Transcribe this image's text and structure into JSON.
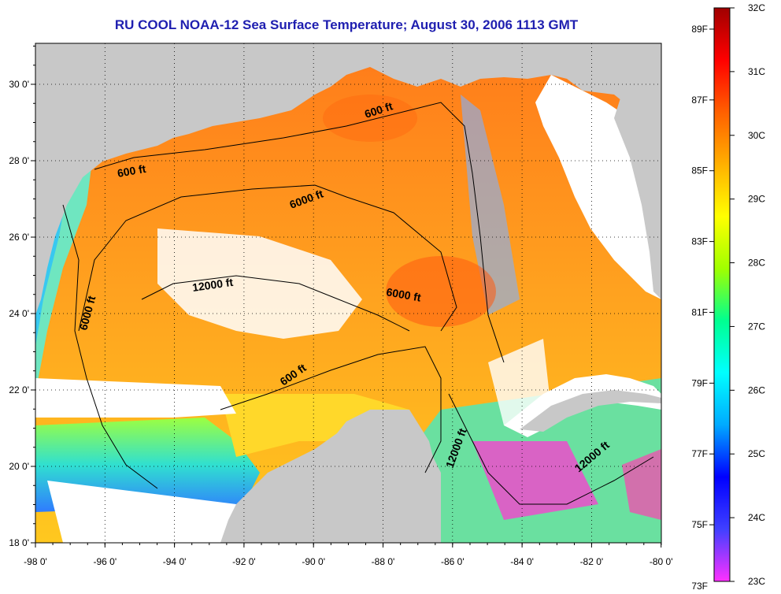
{
  "title": "RU COOL  NOAA-12  Sea Surface Temperature;  August 30, 2006 1113 GMT",
  "map": {
    "lon_ticks": [
      "-98 0'",
      "-96 0'",
      "-94 0'",
      "-92 0'",
      "-90 0'",
      "-88 0'",
      "-86 0'",
      "-84 0'",
      "-82 0'",
      "-80 0'"
    ],
    "lat_ticks": [
      "18 0'",
      "20 0'",
      "22 0'",
      "24 0'",
      "26 0'",
      "28 0'",
      "30 0'"
    ],
    "contour_labels": [
      "600 ft",
      "600 ft",
      "600 ft",
      "6000 ft",
      "6000 ft",
      "6000 ft",
      "12000 ft",
      "12000 ft",
      "12000 ft"
    ],
    "colors": {
      "land": "#c8c8c8",
      "cloud": "#ffffff",
      "sst_warm": "#ff8c1a",
      "sst_mid": "#ffd21f",
      "sst_cool": "#3ccfe0",
      "sst_cold": "#ff2bd4"
    }
  },
  "colorbar": {
    "fahrenheit_labels": [
      "89F",
      "87F",
      "85F",
      "83F",
      "81F",
      "79F",
      "77F",
      "75F",
      "73F"
    ],
    "celsius_labels": [
      "32C",
      "31C",
      "30C",
      "29C",
      "28C",
      "27C",
      "26C",
      "25C",
      "24C",
      "23C"
    ],
    "range_c": [
      23,
      32
    ],
    "gradient": [
      "#ff30ff",
      "#4040ff",
      "#0000ff",
      "#00aaff",
      "#00ffff",
      "#00ff90",
      "#a0ff00",
      "#ffff00",
      "#ffb000",
      "#ff6000",
      "#ff0000",
      "#a00000"
    ]
  }
}
